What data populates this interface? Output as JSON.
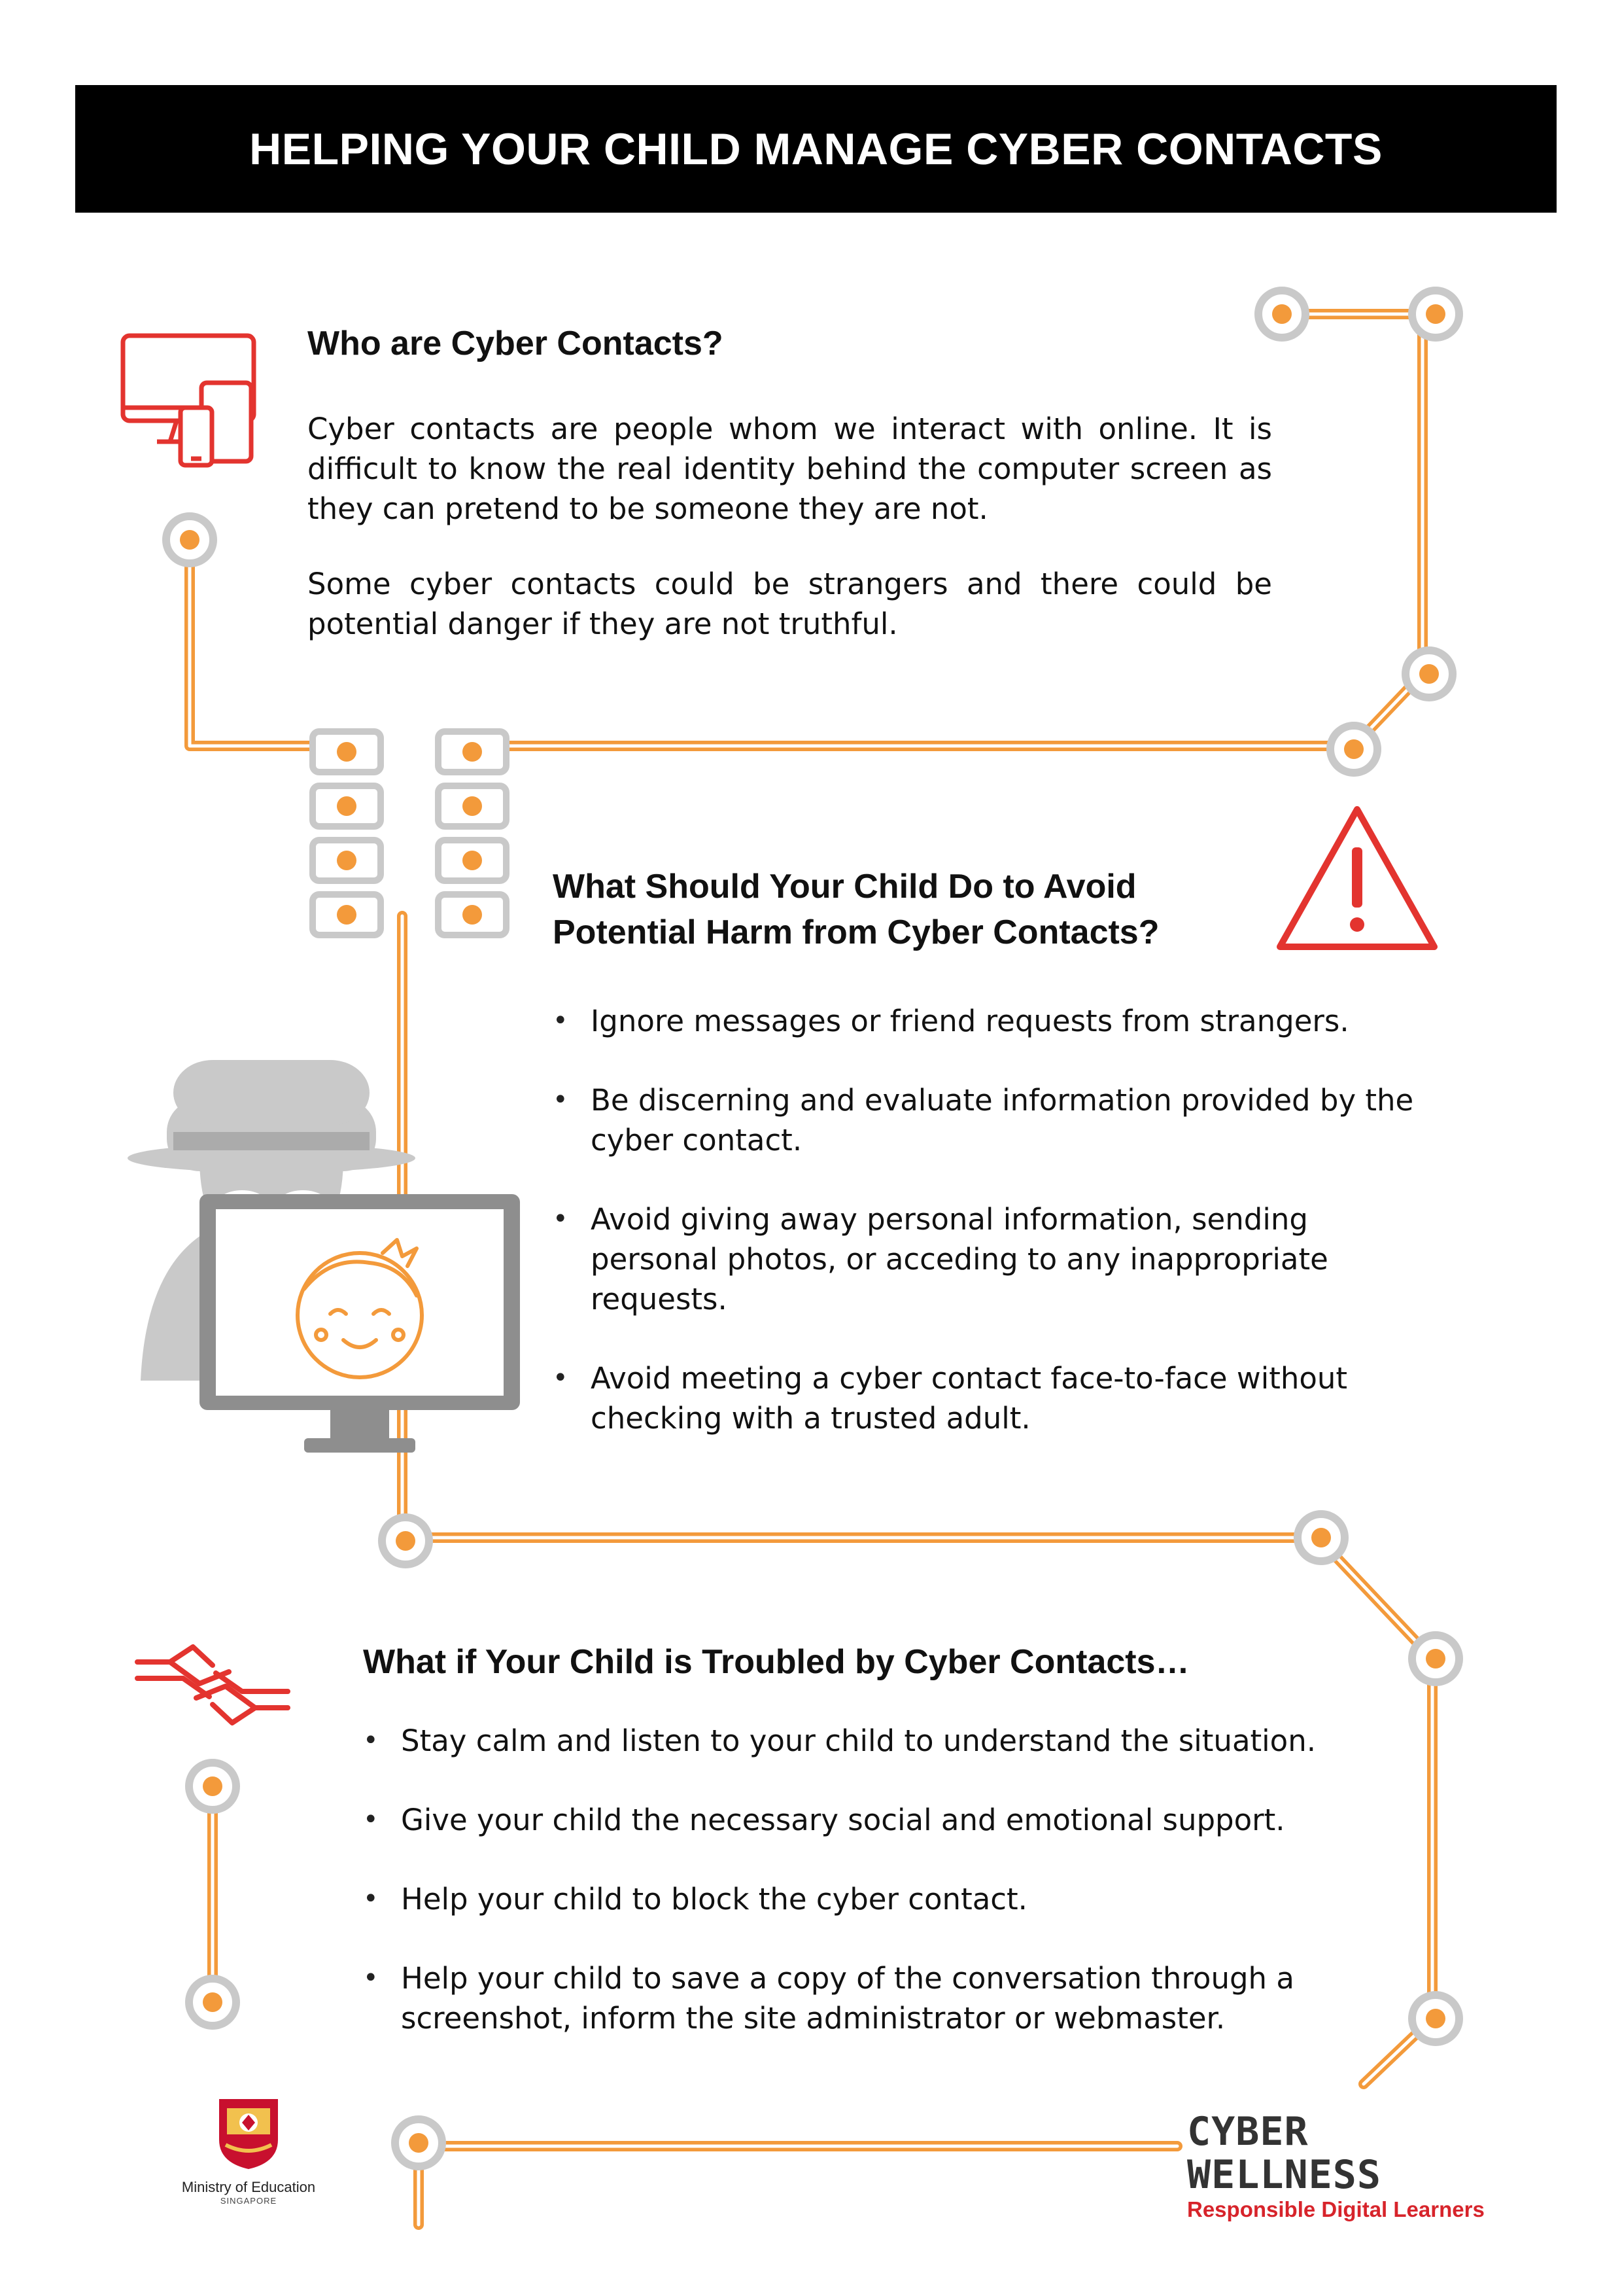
{
  "banner": {
    "title": "HELPING YOUR CHILD MANAGE CYBER CONTACTS"
  },
  "section1": {
    "heading": "Who are Cyber Contacts?",
    "paragraphs": [
      "Cyber contacts are people whom we interact with online.  It is difficult to know the real identity behind the computer screen as they can pretend to be someone they are not.",
      "Some cyber contacts could be strangers and there could be potential danger if they are not truthful."
    ]
  },
  "section2": {
    "heading_line1": "What Should Your Child Do to Avoid",
    "heading_line2": "Potential Harm from Cyber Contacts?",
    "bullets": [
      "Ignore messages or friend requests from strangers.",
      "Be discerning and evaluate information provided by the cyber contact.",
      "Avoid giving away personal information, sending personal photos, or acceding to any inappropriate requests.",
      "Avoid meeting a cyber contact face-to-face without checking with a trusted adult."
    ]
  },
  "section3": {
    "heading": "What if Your Child is Troubled by Cyber Contacts…",
    "bullets": [
      "Stay calm and listen to your child to understand the situation.",
      "Give your child the necessary social and emotional support.",
      "Help your child to block the cyber contact.",
      "Help your child to save a copy of the conversation through a screenshot, inform the site administrator or webmaster."
    ]
  },
  "footer": {
    "moe_name": "Ministry of Education",
    "moe_country": "SINGAPORE",
    "cw_title": "CYBER WELLNESS",
    "cw_subtitle": "Responsible Digital Learners"
  },
  "icons": {
    "section1": "devices-icon",
    "section2": "warning-icon",
    "section3": "helping-hands-icon",
    "illustration": "stranger-behind-monitor-illustration",
    "decoration": "circuit-lines"
  },
  "colors": {
    "accent_orange": "#f39a3b",
    "accent_red": "#e3342f",
    "node_grey": "#c9c9c9",
    "illustration_grey": "#9e9e9e",
    "banner_black": "#000000"
  }
}
